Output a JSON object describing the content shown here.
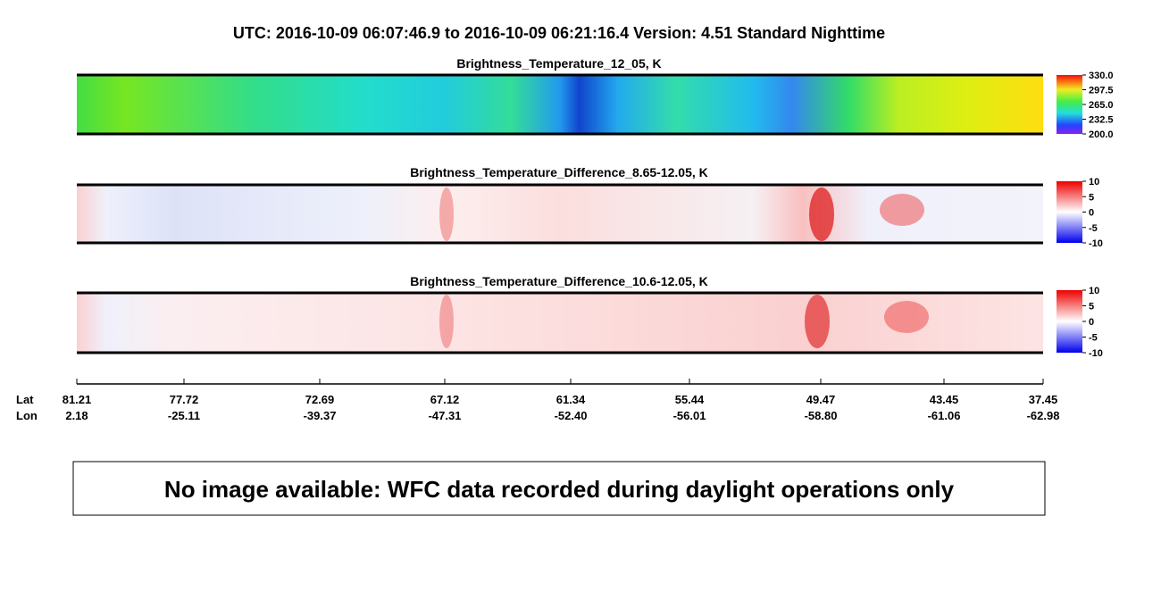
{
  "header": {
    "title": "UTC:  2016-10-09   06:07:46.9  to  2016-10-09   06:21:16.4    Version: 4.51  Standard Nighttime"
  },
  "panels": [
    {
      "title": "Brightness_Temperature_12_05, K",
      "colorbar": [
        "330.0",
        "297.5",
        "265.0",
        "232.5",
        "200.0"
      ]
    },
    {
      "title": "Brightness_Temperature_Difference_8.65-12.05, K",
      "colorbar": [
        "10",
        "5",
        "0",
        "-5",
        "-10"
      ]
    },
    {
      "title": "Brightness_Temperature_Difference_10.6-12.05, K",
      "colorbar": [
        "10",
        "5",
        "0",
        "-5",
        "-10"
      ]
    }
  ],
  "axis": {
    "lat_label": "Lat",
    "lon_label": "Lon",
    "lat": [
      "81.21",
      "77.72",
      "72.69",
      "67.12",
      "61.34",
      "55.44",
      "49.47",
      "43.45",
      "37.45"
    ],
    "lon": [
      "2.18",
      "-25.11",
      "-39.37",
      "-47.31",
      "-52.40",
      "-56.01",
      "-58.80",
      "-61.06",
      "-62.98"
    ]
  },
  "message": "No image available: WFC data recorded during daylight operations only"
}
